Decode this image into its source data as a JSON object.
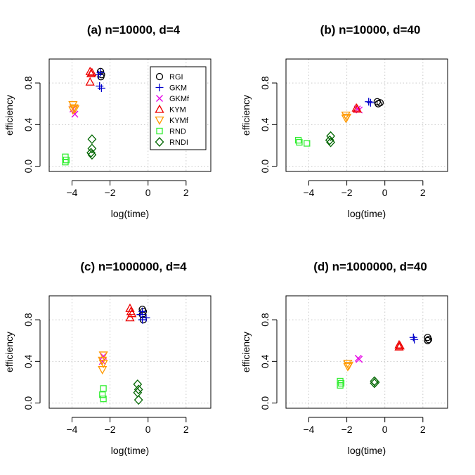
{
  "chart_data": [
    {
      "type": "scatter",
      "title": "(a) n=10000, d=4",
      "xlabel": "log(time)",
      "ylabel": "efficiency",
      "xlim": [
        -5.2,
        3.3
      ],
      "ylim": [
        -0.05,
        1.03
      ],
      "xticks": [
        "-4",
        "-2",
        "0",
        "2"
      ],
      "yticks": [
        "0.0",
        "0.4",
        "0.8"
      ],
      "grid": true,
      "legend": "top-right",
      "series": [
        {
          "name": "RGI",
          "points": [
            [
              -2.5,
              0.91
            ],
            [
              -2.45,
              0.88
            ],
            [
              -2.48,
              0.86
            ]
          ]
        },
        {
          "name": "GKM",
          "points": [
            [
              -2.5,
              0.9
            ],
            [
              -2.6,
              0.88
            ],
            [
              -2.55,
              0.77
            ],
            [
              -2.45,
              0.75
            ]
          ]
        },
        {
          "name": "GKMf",
          "points": [
            [
              -3.95,
              0.55
            ],
            [
              -3.85,
              0.5
            ]
          ]
        },
        {
          "name": "KYM",
          "points": [
            [
              -3.05,
              0.91
            ],
            [
              -3.0,
              0.89
            ],
            [
              -2.95,
              0.9
            ],
            [
              -3.05,
              0.81
            ]
          ]
        },
        {
          "name": "KYMf",
          "points": [
            [
              -3.95,
              0.59
            ],
            [
              -3.9,
              0.56
            ],
            [
              -3.95,
              0.54
            ],
            [
              -3.85,
              0.55
            ]
          ]
        },
        {
          "name": "RND",
          "points": [
            [
              -4.35,
              0.09
            ],
            [
              -4.3,
              0.06
            ],
            [
              -4.35,
              0.04
            ]
          ]
        },
        {
          "name": "RNDI",
          "points": [
            [
              -2.95,
              0.26
            ],
            [
              -2.95,
              0.17
            ],
            [
              -3.0,
              0.13
            ],
            [
              -2.95,
              0.11
            ]
          ]
        }
      ]
    },
    {
      "type": "scatter",
      "title": "(b) n=10000, d=40",
      "xlabel": "log(time)",
      "ylabel": "efficiency",
      "xlim": [
        -5.2,
        3.3
      ],
      "ylim": [
        -0.05,
        1.03
      ],
      "xticks": [
        "-4",
        "-2",
        "0",
        "2"
      ],
      "yticks": [
        "0.0",
        "0.4",
        "0.8"
      ],
      "grid": true,
      "series": [
        {
          "name": "RGI",
          "points": [
            [
              -0.4,
              0.62
            ],
            [
              -0.25,
              0.61
            ],
            [
              -0.35,
              0.6
            ]
          ]
        },
        {
          "name": "GKM",
          "points": [
            [
              -0.85,
              0.62
            ],
            [
              -0.75,
              0.61
            ]
          ]
        },
        {
          "name": "GKMf",
          "points": [
            [
              -1.45,
              0.55
            ],
            [
              -1.35,
              0.54
            ]
          ]
        },
        {
          "name": "KYM",
          "points": [
            [
              -1.5,
              0.56
            ],
            [
              -1.45,
              0.55
            ]
          ]
        },
        {
          "name": "KYMf",
          "points": [
            [
              -2.05,
              0.49
            ],
            [
              -2.0,
              0.47
            ],
            [
              -2.05,
              0.46
            ]
          ]
        },
        {
          "name": "RND",
          "points": [
            [
              -4.55,
              0.25
            ],
            [
              -4.5,
              0.23
            ],
            [
              -4.1,
              0.22
            ]
          ]
        },
        {
          "name": "RNDI",
          "points": [
            [
              -2.85,
              0.29
            ],
            [
              -2.9,
              0.25
            ],
            [
              -2.85,
              0.23
            ]
          ]
        }
      ]
    },
    {
      "type": "scatter",
      "title": "(c) n=1000000, d=4",
      "xlabel": "log(time)",
      "ylabel": "efficiency",
      "xlim": [
        -5.2,
        3.3
      ],
      "ylim": [
        -0.05,
        1.03
      ],
      "xticks": [
        "-4",
        "-2",
        "0",
        "2"
      ],
      "yticks": [
        "0.0",
        "0.4",
        "0.8"
      ],
      "grid": true,
      "series": [
        {
          "name": "RGI",
          "points": [
            [
              -0.3,
              0.9
            ],
            [
              -0.25,
              0.88
            ],
            [
              -0.3,
              0.85
            ],
            [
              -0.25,
              0.8
            ]
          ]
        },
        {
          "name": "GKM",
          "points": [
            [
              -0.3,
              0.88
            ],
            [
              -0.4,
              0.85
            ],
            [
              -0.1,
              0.82
            ],
            [
              -0.3,
              0.8
            ]
          ]
        },
        {
          "name": "GKMf",
          "points": [
            [
              -2.35,
              0.45
            ],
            [
              -2.4,
              0.4
            ]
          ]
        },
        {
          "name": "KYM",
          "points": [
            [
              -0.95,
              0.91
            ],
            [
              -0.9,
              0.88
            ],
            [
              -0.85,
              0.86
            ],
            [
              -0.95,
              0.82
            ]
          ]
        },
        {
          "name": "KYMf",
          "points": [
            [
              -2.35,
              0.46
            ],
            [
              -2.4,
              0.41
            ],
            [
              -2.35,
              0.38
            ],
            [
              -2.4,
              0.32
            ]
          ]
        },
        {
          "name": "RND",
          "points": [
            [
              -2.35,
              0.14
            ],
            [
              -2.4,
              0.08
            ],
            [
              -2.35,
              0.04
            ]
          ]
        },
        {
          "name": "RNDI",
          "points": [
            [
              -0.55,
              0.18
            ],
            [
              -0.5,
              0.13
            ],
            [
              -0.55,
              0.1
            ],
            [
              -0.5,
              0.03
            ]
          ]
        }
      ]
    },
    {
      "type": "scatter",
      "title": "(d) n=1000000, d=40",
      "xlabel": "log(time)",
      "ylabel": "efficiency",
      "xlim": [
        -5.2,
        3.3
      ],
      "ylim": [
        -0.05,
        1.03
      ],
      "xticks": [
        "-4",
        "-2",
        "0",
        "2"
      ],
      "yticks": [
        "0.0",
        "0.4",
        "0.8"
      ],
      "grid": true,
      "series": [
        {
          "name": "RGI",
          "points": [
            [
              2.25,
              0.63
            ],
            [
              2.3,
              0.61
            ],
            [
              2.25,
              0.6
            ]
          ]
        },
        {
          "name": "GKM",
          "points": [
            [
              1.5,
              0.63
            ],
            [
              1.55,
              0.61
            ]
          ]
        },
        {
          "name": "GKMf",
          "points": [
            [
              -1.4,
              0.43
            ],
            [
              -1.35,
              0.42
            ]
          ]
        },
        {
          "name": "KYM",
          "points": [
            [
              0.75,
              0.56
            ],
            [
              0.8,
              0.55
            ],
            [
              0.75,
              0.54
            ]
          ]
        },
        {
          "name": "KYMf",
          "points": [
            [
              -1.95,
              0.38
            ],
            [
              -1.9,
              0.36
            ],
            [
              -1.95,
              0.35
            ]
          ]
        },
        {
          "name": "RND",
          "points": [
            [
              -2.35,
              0.21
            ],
            [
              -2.3,
              0.19
            ],
            [
              -2.35,
              0.17
            ]
          ]
        },
        {
          "name": "RNDI",
          "points": [
            [
              -0.55,
              0.21
            ],
            [
              -0.5,
              0.2
            ],
            [
              -0.55,
              0.19
            ]
          ]
        }
      ]
    }
  ],
  "legend": {
    "entries": [
      {
        "name": "RGI",
        "symbol": "circle",
        "color": "#000000"
      },
      {
        "name": "GKM",
        "symbol": "plus",
        "color": "#0000cc"
      },
      {
        "name": "GKMf",
        "symbol": "cross",
        "color": "#e600e6"
      },
      {
        "name": "KYM",
        "symbol": "triangle-up",
        "color": "#ee0000"
      },
      {
        "name": "KYMf",
        "symbol": "triangle-down",
        "color": "#ff9900"
      },
      {
        "name": "RND",
        "symbol": "square",
        "color": "#33ee33"
      },
      {
        "name": "RNDI",
        "symbol": "diamond",
        "color": "#006600"
      }
    ]
  }
}
